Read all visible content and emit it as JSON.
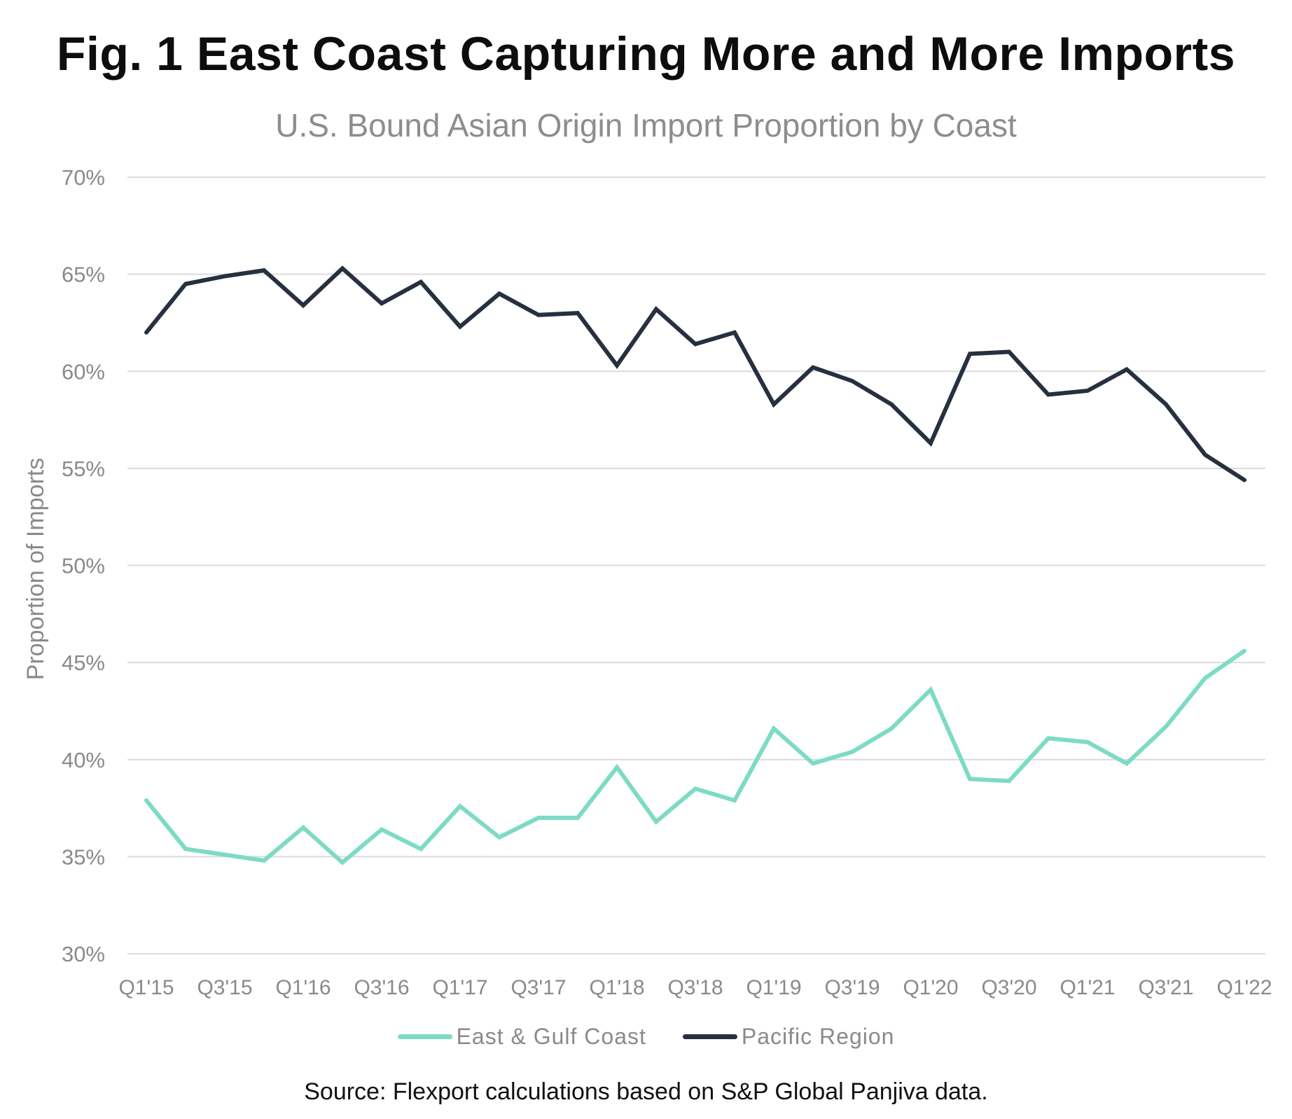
{
  "title": "Fig. 1 East Coast Capturing More and More Imports",
  "subtitle": "U.S. Bound Asian Origin Import Proportion by Coast",
  "source": "Source: Flexport calculations based on S&P Global Panjiva data.",
  "colors": {
    "east_gulf": "#7ddbc5",
    "pacific": "#27303f",
    "grid": "#dcdcdc",
    "axis_text": "#8a8a8a"
  },
  "chart_data": {
    "type": "line",
    "title": "U.S. Bound Asian Origin Import Proportion by Coast",
    "xlabel": "",
    "ylabel": "Proportion of Imports",
    "ylim": [
      30,
      70
    ],
    "y_ticks": [
      30,
      35,
      40,
      45,
      50,
      55,
      60,
      65,
      70
    ],
    "y_tick_labels": [
      "30%",
      "35%",
      "40%",
      "45%",
      "50%",
      "55%",
      "60%",
      "65%",
      "70%"
    ],
    "grid": true,
    "legend": "bottom-center",
    "categories": [
      "Q1'15",
      "Q2'15",
      "Q3'15",
      "Q4'15",
      "Q1'16",
      "Q2'16",
      "Q3'16",
      "Q4'16",
      "Q1'17",
      "Q2'17",
      "Q3'17",
      "Q4'17",
      "Q1'18",
      "Q2'18",
      "Q3'18",
      "Q4'18",
      "Q1'19",
      "Q2'19",
      "Q3'19",
      "Q4'19",
      "Q1'20",
      "Q2'20",
      "Q3'20",
      "Q4'20",
      "Q1'21",
      "Q2'21",
      "Q3'21",
      "Q4'21",
      "Q1'22"
    ],
    "x_tick_labels": [
      "Q1'15",
      "Q3'15",
      "Q1'16",
      "Q3'16",
      "Q1'17",
      "Q3'17",
      "Q1'18",
      "Q3'18",
      "Q1'19",
      "Q3'19",
      "Q1'20",
      "Q3'20",
      "Q1'21",
      "Q3'21",
      "Q1'22"
    ],
    "series": [
      {
        "name": "East & Gulf Coast",
        "color": "#7ddbc5",
        "values": [
          37.9,
          35.4,
          35.1,
          34.8,
          36.5,
          34.7,
          36.4,
          35.4,
          37.6,
          36.0,
          37.0,
          37.0,
          39.6,
          36.8,
          38.5,
          37.9,
          41.6,
          39.8,
          40.4,
          41.6,
          43.6,
          39.0,
          38.9,
          41.1,
          40.9,
          39.8,
          41.7,
          44.2,
          45.6
        ]
      },
      {
        "name": "Pacific Region",
        "color": "#27303f",
        "values": [
          62.0,
          64.5,
          64.9,
          65.2,
          63.4,
          65.3,
          63.5,
          64.6,
          62.3,
          64.0,
          62.9,
          63.0,
          60.3,
          63.2,
          61.4,
          62.0,
          58.3,
          60.2,
          59.5,
          58.3,
          56.3,
          60.9,
          61.0,
          58.8,
          59.0,
          60.1,
          58.3,
          55.7,
          54.4
        ]
      }
    ]
  }
}
